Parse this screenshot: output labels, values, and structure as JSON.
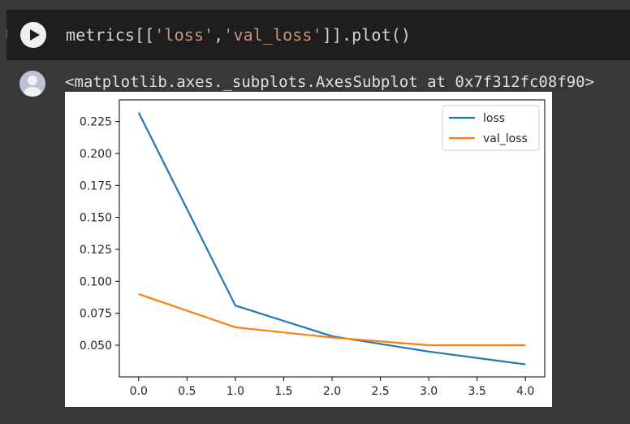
{
  "cell": {
    "code_prefix": "metrics[[",
    "code_arg1": "'loss'",
    "code_sep": ",",
    "code_arg2": "'val_loss'",
    "code_suffix": "]].plot()",
    "run_icon": "play-icon"
  },
  "output": {
    "avatar_icon": "user-avatar-icon",
    "text": "<matplotlib.axes._subplots.AxesSubplot at 0x7f312fc08f90>"
  },
  "colors": {
    "loss": "#1f77b4",
    "val_loss": "#ff7f0e"
  },
  "chart_data": {
    "type": "line",
    "x": [
      0.0,
      1.0,
      2.0,
      3.0,
      4.0
    ],
    "series": [
      {
        "name": "loss",
        "values": [
          0.232,
          0.081,
          0.057,
          0.045,
          0.035
        ]
      },
      {
        "name": "val_loss",
        "values": [
          0.09,
          0.064,
          0.056,
          0.05,
          0.05
        ]
      }
    ],
    "xticks": [
      "0.0",
      "0.5",
      "1.0",
      "1.5",
      "2.0",
      "2.5",
      "3.0",
      "3.5",
      "4.0"
    ],
    "yticks": [
      "0.050",
      "0.075",
      "0.100",
      "0.125",
      "0.150",
      "0.175",
      "0.200",
      "0.225"
    ],
    "xlim": [
      -0.2,
      4.2
    ],
    "ylim": [
      0.0252,
      0.2419
    ],
    "grid": false,
    "legend": "top-right"
  }
}
